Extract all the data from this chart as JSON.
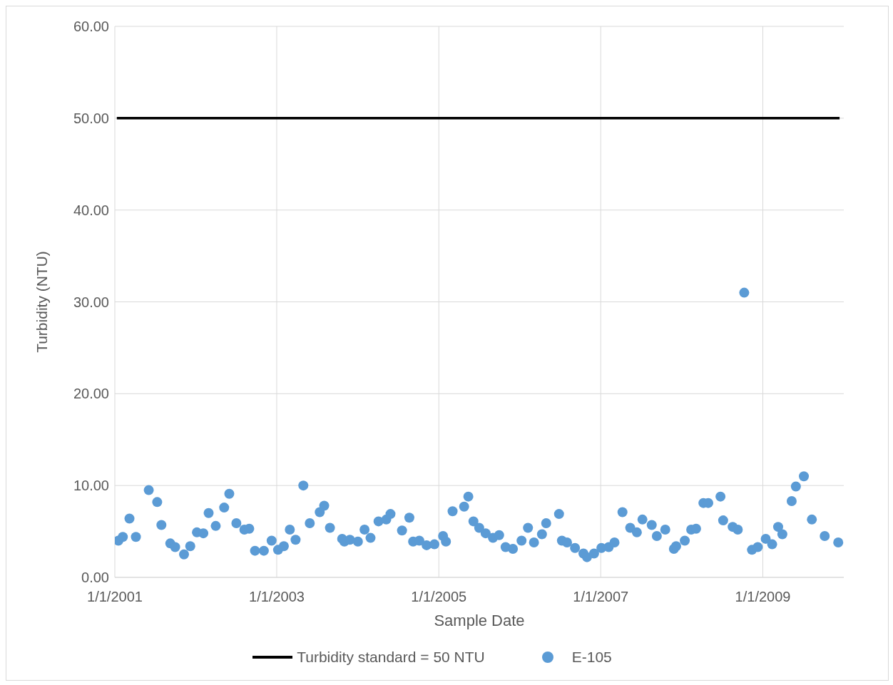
{
  "chart_data": {
    "type": "scatter",
    "xlabel": "Sample Date",
    "ylabel": "Turbidity (NTU)",
    "xlim": [
      "2001-01-01",
      "2010-01-01"
    ],
    "xticks": [
      {
        "value": "2001-01-01",
        "label": "1/1/2001"
      },
      {
        "value": "2003-01-01",
        "label": "1/1/2003"
      },
      {
        "value": "2005-01-01",
        "label": "1/1/2005"
      },
      {
        "value": "2007-01-01",
        "label": "1/1/2007"
      },
      {
        "value": "2009-01-01",
        "label": "1/1/2009"
      }
    ],
    "ylim": [
      0,
      60
    ],
    "yticks": [
      {
        "value": 0,
        "label": "0.00"
      },
      {
        "value": 10,
        "label": "10.00"
      },
      {
        "value": 20,
        "label": "20.00"
      },
      {
        "value": 30,
        "label": "30.00"
      },
      {
        "value": 40,
        "label": "40.00"
      },
      {
        "value": 50,
        "label": "50.00"
      },
      {
        "value": 60,
        "label": "60.00"
      }
    ],
    "grid": true,
    "legend": "bottom",
    "series": [
      {
        "name": "Turbidity standard = 50 NTU",
        "type": "line",
        "color": "#000000",
        "marker": "none",
        "line_style": "solid",
        "x": [
          "2001-01-10",
          "2009-12-13"
        ],
        "values": [
          50,
          50
        ]
      },
      {
        "name": "E-105",
        "type": "scatter",
        "color": "#5b9bd5",
        "marker": "circle",
        "x": [
          "2001-01-17",
          "2001-02-06",
          "2001-03-08",
          "2001-04-06",
          "2001-06-03",
          "2001-07-11",
          "2001-07-30",
          "2001-09-08",
          "2001-09-30",
          "2001-11-09",
          "2001-12-07",
          "2002-01-06",
          "2002-02-04",
          "2002-02-28",
          "2002-04-01",
          "2002-05-09",
          "2002-06-01",
          "2002-07-03",
          "2002-08-08",
          "2002-08-30",
          "2002-09-25",
          "2002-11-04",
          "2002-12-09",
          "2003-01-07",
          "2003-02-02",
          "2003-03-01",
          "2003-03-27",
          "2003-05-01",
          "2003-05-30",
          "2003-07-14",
          "2003-08-03",
          "2003-08-29",
          "2003-10-23",
          "2003-11-02",
          "2003-11-27",
          "2004-01-02",
          "2004-02-01",
          "2004-02-28",
          "2004-04-04",
          "2004-05-09",
          "2004-05-28",
          "2004-07-19",
          "2004-08-21",
          "2004-09-07",
          "2004-10-05",
          "2004-11-07",
          "2004-12-12",
          "2005-01-20",
          "2005-02-02",
          "2005-03-04",
          "2005-04-25",
          "2005-05-14",
          "2005-06-06",
          "2005-07-02",
          "2005-07-31",
          "2005-09-02",
          "2005-09-30",
          "2005-10-29",
          "2005-12-01",
          "2006-01-09",
          "2006-02-07",
          "2006-03-06",
          "2006-04-11",
          "2006-04-30",
          "2006-06-27",
          "2006-07-10",
          "2006-08-02",
          "2006-09-07",
          "2006-10-15",
          "2006-10-31",
          "2006-12-02",
          "2007-01-04",
          "2007-02-06",
          "2007-03-04",
          "2007-04-09",
          "2007-05-14",
          "2007-06-13",
          "2007-07-08",
          "2007-08-19",
          "2007-09-11",
          "2007-10-19",
          "2007-11-27",
          "2007-12-07",
          "2008-01-15",
          "2008-02-13",
          "2008-03-06",
          "2008-04-08",
          "2008-04-30",
          "2008-06-24",
          "2008-07-06",
          "2008-08-18",
          "2008-09-10",
          "2008-10-09",
          "2008-11-13",
          "2008-12-09",
          "2009-01-14",
          "2009-02-12",
          "2009-03-11",
          "2009-03-30",
          "2009-05-11",
          "2009-05-30",
          "2009-07-05",
          "2009-08-10",
          "2009-10-07",
          "2009-12-07"
        ],
        "values": [
          4.0,
          4.4,
          6.4,
          4.4,
          9.5,
          8.2,
          5.7,
          3.7,
          3.3,
          2.5,
          3.4,
          4.9,
          4.8,
          7.0,
          5.6,
          7.6,
          9.1,
          5.9,
          5.2,
          5.3,
          2.9,
          2.9,
          4.0,
          3.0,
          3.4,
          5.2,
          4.1,
          10.0,
          5.9,
          7.1,
          7.8,
          5.4,
          4.2,
          3.9,
          4.1,
          3.9,
          5.2,
          4.3,
          6.1,
          6.3,
          6.9,
          5.1,
          6.5,
          3.9,
          4.0,
          3.5,
          3.6,
          4.5,
          3.9,
          7.2,
          7.7,
          8.8,
          6.1,
          5.4,
          4.8,
          4.3,
          4.6,
          3.3,
          3.1,
          4.0,
          5.4,
          3.8,
          4.7,
          5.9,
          6.9,
          4.0,
          3.8,
          3.2,
          2.6,
          2.2,
          2.6,
          3.2,
          3.3,
          3.8,
          7.1,
          5.4,
          4.9,
          6.3,
          5.7,
          4.5,
          5.2,
          3.1,
          3.4,
          4.0,
          5.2,
          5.3,
          8.1,
          8.1,
          8.8,
          6.2,
          5.5,
          5.2,
          31.0,
          3.0,
          3.3,
          4.2,
          3.6,
          5.5,
          4.7,
          8.3,
          9.9,
          11.0,
          6.3,
          4.5,
          3.8
        ]
      }
    ]
  }
}
